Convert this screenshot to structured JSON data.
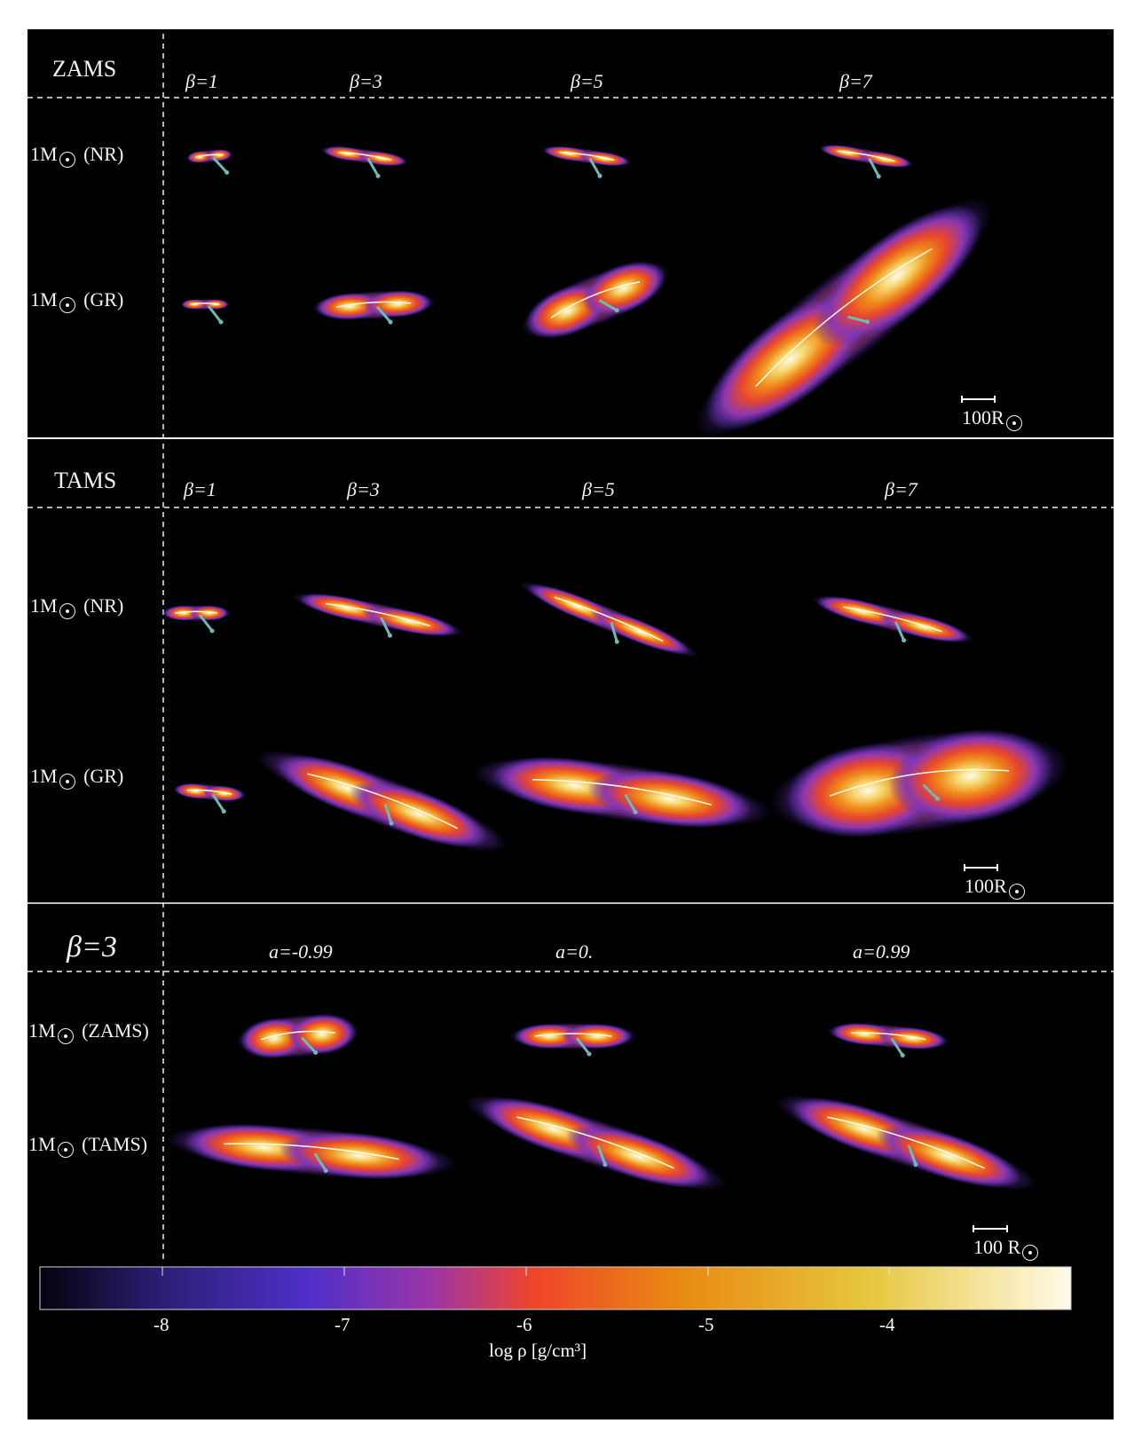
{
  "panels": [
    {
      "title": "ZAMS",
      "columns": [
        "β=1",
        "β=3",
        "β=5",
        "β=7"
      ],
      "rows": [
        {
          "mass": "1M",
          "tag": "(NR)"
        },
        {
          "mass": "1M",
          "tag": "(GR)"
        }
      ],
      "scale": "100R"
    },
    {
      "title": "TAMS",
      "columns": [
        "β=1",
        "β=3",
        "β=5",
        "β=7"
      ],
      "rows": [
        {
          "mass": "1M",
          "tag": "(NR)"
        },
        {
          "mass": "1M",
          "tag": "(GR)"
        }
      ],
      "scale": "100R"
    },
    {
      "title": "β=3",
      "columns": [
        "a=-0.99",
        "a=0.",
        "a=0.99"
      ],
      "rows": [
        {
          "mass": "1M",
          "tag": "(ZAMS)"
        },
        {
          "mass": "1M",
          "tag": "(TAMS)"
        }
      ],
      "scale": "100 R"
    }
  ],
  "colorbar": {
    "ticks": [
      "-8",
      "-7",
      "-6",
      "-5",
      "-4"
    ],
    "label": "log ρ [g/cm³]",
    "colormap": [
      "#05030d",
      "#2c1f77",
      "#4f2fc9",
      "#9b35a6",
      "#f0452a",
      "#e88a12",
      "#e6c63a",
      "#fffbe8"
    ]
  },
  "colors": {
    "background": "#000000",
    "foreground": "#f2f2f2",
    "stream": "#6fb9b9"
  }
}
